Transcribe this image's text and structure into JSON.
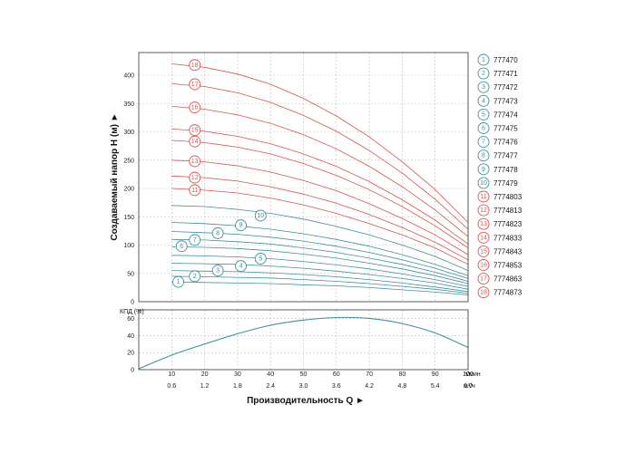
{
  "chart_data": {
    "type": "line",
    "title": "",
    "colors": {
      "teal": "#3f8f9e",
      "red": "#d9534f",
      "grid": "#bfbfbf",
      "axis": "#333333"
    },
    "head_plot": {
      "ylabel": "Создаваемый напор H (м) ►",
      "ylim": [
        0,
        440
      ],
      "y_ticks": [
        0,
        50,
        100,
        150,
        200,
        250,
        300,
        350,
        400
      ],
      "x": [
        10,
        20,
        30,
        40,
        50,
        60,
        70,
        80,
        90,
        100
      ],
      "series": [
        {
          "name": "777470",
          "color": "teal",
          "values": [
            35,
            34,
            33,
            32,
            30,
            28,
            25,
            21,
            17,
            12
          ]
        },
        {
          "name": "777471",
          "color": "teal",
          "values": [
            45,
            44,
            43,
            42,
            39,
            36,
            32,
            27,
            22,
            15
          ]
        },
        {
          "name": "777472",
          "color": "teal",
          "values": [
            55,
            54,
            53,
            51,
            48,
            44,
            39,
            33,
            26,
            18
          ]
        },
        {
          "name": "777473",
          "color": "teal",
          "values": [
            68,
            67,
            66,
            63,
            59,
            54,
            48,
            41,
            33,
            22
          ]
        },
        {
          "name": "777474",
          "color": "teal",
          "values": [
            82,
            81,
            79,
            76,
            71,
            65,
            58,
            49,
            39,
            27
          ]
        },
        {
          "name": "777475",
          "color": "teal",
          "values": [
            97,
            96,
            94,
            90,
            84,
            77,
            68,
            58,
            46,
            32
          ]
        },
        {
          "name": "777476",
          "color": "teal",
          "values": [
            110,
            109,
            106,
            102,
            95,
            87,
            77,
            66,
            52,
            36
          ]
        },
        {
          "name": "777477",
          "color": "teal",
          "values": [
            124,
            122,
            119,
            114,
            107,
            98,
            87,
            74,
            59,
            41
          ]
        },
        {
          "name": "777478",
          "color": "teal",
          "values": [
            140,
            138,
            134,
            128,
            120,
            110,
            98,
            83,
            66,
            46
          ]
        },
        {
          "name": "777479",
          "color": "teal",
          "values": [
            170,
            168,
            163,
            156,
            146,
            133,
            118,
            100,
            80,
            55
          ]
        },
        {
          "name": "7774803",
          "color": "red",
          "values": [
            200,
            197,
            192,
            183,
            171,
            156,
            138,
            118,
            95,
            66
          ]
        },
        {
          "name": "7774813",
          "color": "red",
          "values": [
            222,
            219,
            213,
            203,
            190,
            174,
            154,
            131,
            105,
            74
          ]
        },
        {
          "name": "7774823",
          "color": "red",
          "values": [
            250,
            247,
            240,
            229,
            214,
            196,
            173,
            147,
            118,
            83
          ]
        },
        {
          "name": "7774833",
          "color": "red",
          "values": [
            285,
            281,
            273,
            261,
            244,
            223,
            198,
            168,
            134,
            95
          ]
        },
        {
          "name": "7774843",
          "color": "red",
          "values": [
            305,
            301,
            292,
            279,
            261,
            239,
            212,
            180,
            144,
            102
          ]
        },
        {
          "name": "7774853",
          "color": "red",
          "values": [
            345,
            340,
            330,
            315,
            295,
            270,
            239,
            203,
            162,
            115
          ]
        },
        {
          "name": "7774863",
          "color": "red",
          "values": [
            385,
            380,
            369,
            352,
            329,
            301,
            267,
            227,
            181,
            128
          ]
        },
        {
          "name": "7774873",
          "color": "red",
          "values": [
            420,
            414,
            402,
            384,
            359,
            328,
            291,
            247,
            198,
            140
          ]
        }
      ],
      "badges": [
        {
          "label": "1",
          "x": 12,
          "y": 35
        },
        {
          "label": "2",
          "x": 17,
          "y": 45
        },
        {
          "label": "3",
          "x": 24,
          "y": 55
        },
        {
          "label": "4",
          "x": 31,
          "y": 63
        },
        {
          "label": "5",
          "x": 37,
          "y": 76
        },
        {
          "label": "6",
          "x": 13,
          "y": 98
        },
        {
          "label": "7",
          "x": 17,
          "y": 109
        },
        {
          "label": "8",
          "x": 24,
          "y": 121
        },
        {
          "label": "9",
          "x": 31,
          "y": 135
        },
        {
          "label": "10",
          "x": 37,
          "y": 152
        },
        {
          "label": "11",
          "x": 17,
          "y": 197
        },
        {
          "label": "12",
          "x": 17,
          "y": 219
        },
        {
          "label": "13",
          "x": 17,
          "y": 248
        },
        {
          "label": "14",
          "x": 17,
          "y": 283
        },
        {
          "label": "15",
          "x": 17,
          "y": 303
        },
        {
          "label": "16",
          "x": 17,
          "y": 343
        },
        {
          "label": "17",
          "x": 17,
          "y": 384
        },
        {
          "label": "18",
          "x": 17,
          "y": 418
        }
      ]
    },
    "efficiency_plot": {
      "ylabel": "КПД (%)",
      "ylim": [
        0,
        70
      ],
      "y_ticks": [
        0,
        20,
        40,
        60
      ],
      "x": [
        0,
        10,
        20,
        30,
        40,
        50,
        60,
        70,
        80,
        90,
        100
      ],
      "values": [
        1,
        17,
        30,
        42,
        52,
        58,
        61,
        60,
        54,
        43,
        26
      ]
    },
    "x_axis": {
      "xlim": [
        0,
        100
      ],
      "lmin_ticks": [
        "10",
        "20",
        "30",
        "40",
        "50",
        "60",
        "70",
        "80",
        "90",
        "100"
      ],
      "m3h_ticks": [
        "0.6",
        "1.2",
        "1.8",
        "2.4",
        "3.0",
        "3.6",
        "4.2",
        "4.8",
        "5.4",
        "6.0"
      ],
      "unit_lmin": "л/мин",
      "unit_m3h": "м³/ч",
      "xlabel": "Производительность Q ►"
    },
    "legend": [
      {
        "num": "1",
        "code": "777470",
        "color": "teal"
      },
      {
        "num": "2",
        "code": "777471",
        "color": "teal"
      },
      {
        "num": "3",
        "code": "777472",
        "color": "teal"
      },
      {
        "num": "4",
        "code": "777473",
        "color": "teal"
      },
      {
        "num": "5",
        "code": "777474",
        "color": "teal"
      },
      {
        "num": "6",
        "code": "777475",
        "color": "teal"
      },
      {
        "num": "7",
        "code": "777476",
        "color": "teal"
      },
      {
        "num": "8",
        "code": "777477",
        "color": "teal"
      },
      {
        "num": "9",
        "code": "777478",
        "color": "teal"
      },
      {
        "num": "10",
        "code": "777479",
        "color": "teal"
      },
      {
        "num": "11",
        "code": "7774803",
        "color": "red"
      },
      {
        "num": "12",
        "code": "7774813",
        "color": "red"
      },
      {
        "num": "13",
        "code": "7774823",
        "color": "red"
      },
      {
        "num": "14",
        "code": "7774833",
        "color": "red"
      },
      {
        "num": "15",
        "code": "7774843",
        "color": "red"
      },
      {
        "num": "16",
        "code": "7774853",
        "color": "red"
      },
      {
        "num": "17",
        "code": "7774863",
        "color": "red"
      },
      {
        "num": "18",
        "code": "7774873",
        "color": "red"
      }
    ]
  }
}
